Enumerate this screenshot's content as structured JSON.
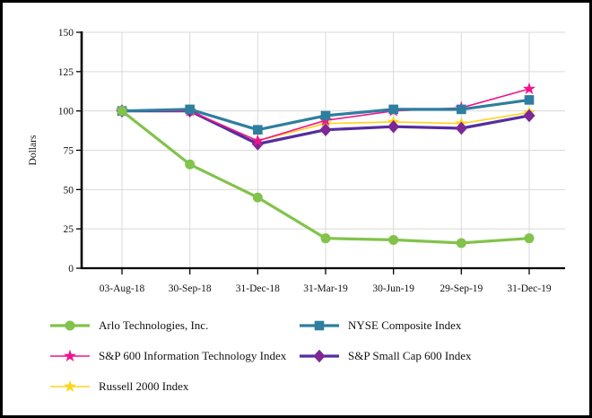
{
  "chart_data": {
    "type": "line",
    "title": "",
    "xlabel": "",
    "ylabel": "Dollars",
    "ylim": [
      0,
      150
    ],
    "y_ticks": [
      0,
      25,
      50,
      75,
      100,
      125,
      150
    ],
    "grid": true,
    "legend_position": "bottom",
    "categories": [
      "03-Aug-18",
      "30-Sep-18",
      "31-Dec-18",
      "31-Mar-19",
      "30-Jun-19",
      "29-Sep-19",
      "31-Dec-19"
    ],
    "series": [
      {
        "name": "Arlo Technologies, Inc.",
        "marker": "circle",
        "color": "#82C34B",
        "line_color": "#82C34B",
        "line_width": 3.2,
        "values": [
          100,
          66,
          45,
          19,
          18,
          16,
          19
        ]
      },
      {
        "name": "NYSE Composite Index",
        "marker": "square",
        "color": "#2E7E9E",
        "line_color": "#2E7E9E",
        "line_width": 3.2,
        "values": [
          100,
          101,
          88,
          97,
          101,
          101,
          107
        ]
      },
      {
        "name": "S&P 600 Information Technology Index",
        "marker": "star",
        "color": "#F0148C",
        "line_color": "#F0148C",
        "line_width": 1.6,
        "values": [
          100,
          100,
          81,
          94,
          100,
          102,
          114
        ]
      },
      {
        "name": "S&P Small Cap 600 Index",
        "marker": "diamond",
        "color": "#7D2896",
        "line_color": "#552DA0",
        "line_width": 3.2,
        "values": [
          100,
          100,
          79,
          88,
          90,
          89,
          97
        ]
      },
      {
        "name": "Russell 2000 Index",
        "marker": "star",
        "color": "#FFD41E",
        "line_color": "#FFD41E",
        "line_width": 1.6,
        "values": [
          100,
          100,
          81,
          92,
          93,
          92,
          99
        ]
      }
    ],
    "draw_order": [
      4,
      3,
      2,
      1,
      0
    ]
  },
  "colors": {
    "grid": "#DADADA",
    "axis": "#000000",
    "tick_text": "#111111",
    "background": "#FFFFFF",
    "border": "#000000"
  }
}
